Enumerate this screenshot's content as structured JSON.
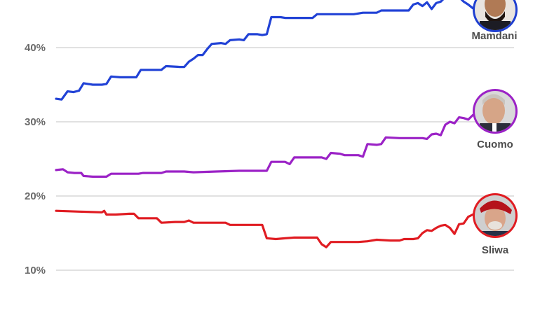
{
  "chart_data": {
    "type": "line",
    "title": "",
    "xlabel": "",
    "ylabel": "",
    "ylim": [
      8,
      49
    ],
    "y_ticks": [
      10,
      20,
      30,
      40
    ],
    "y_tick_labels": [
      "10%",
      "20%",
      "30%",
      "40%"
    ],
    "grid": true,
    "x_range": [
      0,
      100
    ],
    "series": [
      {
        "name": "Mamdani",
        "color": "#2142d6",
        "avatar_ring": "#1f3fd0",
        "icon": "mamdani-portrait",
        "points": [
          [
            0,
            33.1
          ],
          [
            1.2,
            33
          ],
          [
            2.5,
            34.1
          ],
          [
            3.8,
            34
          ],
          [
            5,
            34.2
          ],
          [
            6,
            35.2
          ],
          [
            8,
            35
          ],
          [
            10,
            35
          ],
          [
            11,
            35.1
          ],
          [
            12,
            36.1
          ],
          [
            14,
            36
          ],
          [
            16,
            36
          ],
          [
            17.5,
            36
          ],
          [
            18.5,
            37
          ],
          [
            21,
            37
          ],
          [
            23,
            37
          ],
          [
            24,
            37.5
          ],
          [
            27,
            37.4
          ],
          [
            28,
            37.4
          ],
          [
            29,
            38.1
          ],
          [
            30,
            38.5
          ],
          [
            31,
            39
          ],
          [
            32,
            39
          ],
          [
            33,
            39.8
          ],
          [
            34,
            40.5
          ],
          [
            36,
            40.6
          ],
          [
            37,
            40.5
          ],
          [
            38,
            41
          ],
          [
            40,
            41.1
          ],
          [
            41,
            41
          ],
          [
            42,
            41.8
          ],
          [
            44,
            41.8
          ],
          [
            45,
            41.7
          ],
          [
            46,
            41.8
          ],
          [
            47,
            44.1
          ],
          [
            49,
            44.1
          ],
          [
            50,
            44
          ],
          [
            51,
            44
          ],
          [
            54,
            44
          ],
          [
            56,
            44
          ],
          [
            57,
            44.5
          ],
          [
            60,
            44.5
          ],
          [
            65,
            44.5
          ],
          [
            67,
            44.7
          ],
          [
            70,
            44.7
          ],
          [
            71,
            45
          ],
          [
            75,
            45
          ],
          [
            77,
            45
          ],
          [
            78,
            45.8
          ],
          [
            79,
            46
          ],
          [
            80,
            45.6
          ],
          [
            81,
            46.1
          ],
          [
            82,
            45.2
          ],
          [
            83,
            46
          ],
          [
            84,
            46.2
          ],
          [
            85,
            46.8
          ],
          [
            86,
            47
          ],
          [
            87,
            46.6
          ],
          [
            88,
            46.8
          ],
          [
            89,
            46.2
          ],
          [
            90,
            45.8
          ],
          [
            91,
            45.3
          ],
          [
            92,
            45.4
          ]
        ]
      },
      {
        "name": "Cuomo",
        "color": "#9b22c6",
        "avatar_ring": "#9b22c6",
        "icon": "cuomo-portrait",
        "points": [
          [
            0,
            23.5
          ],
          [
            1.5,
            23.6
          ],
          [
            2.5,
            23.2
          ],
          [
            4,
            23.1
          ],
          [
            5.5,
            23.1
          ],
          [
            6,
            22.7
          ],
          [
            8,
            22.6
          ],
          [
            10,
            22.6
          ],
          [
            11,
            22.6
          ],
          [
            12,
            23
          ],
          [
            14,
            23
          ],
          [
            18,
            23
          ],
          [
            19,
            23.1
          ],
          [
            22,
            23.1
          ],
          [
            23,
            23.1
          ],
          [
            24,
            23.3
          ],
          [
            28,
            23.3
          ],
          [
            30,
            23.2
          ],
          [
            35,
            23.3
          ],
          [
            40,
            23.4
          ],
          [
            45,
            23.4
          ],
          [
            46,
            23.4
          ],
          [
            47,
            24.6
          ],
          [
            50,
            24.6
          ],
          [
            51,
            24.3
          ],
          [
            52,
            25.2
          ],
          [
            55,
            25.2
          ],
          [
            58,
            25.2
          ],
          [
            59,
            25
          ],
          [
            60,
            25.8
          ],
          [
            62,
            25.7
          ],
          [
            63,
            25.5
          ],
          [
            66,
            25.5
          ],
          [
            67,
            25.3
          ],
          [
            68,
            27
          ],
          [
            70,
            26.9
          ],
          [
            71,
            27
          ],
          [
            72,
            27.9
          ],
          [
            75,
            27.8
          ],
          [
            77,
            27.8
          ],
          [
            80,
            27.8
          ],
          [
            81,
            27.7
          ],
          [
            82,
            28.3
          ],
          [
            83,
            28.4
          ],
          [
            84,
            28.2
          ],
          [
            85,
            29.6
          ],
          [
            86,
            30
          ],
          [
            87,
            29.8
          ],
          [
            88,
            30.6
          ],
          [
            89,
            30.5
          ],
          [
            90,
            30.3
          ],
          [
            91,
            30.9
          ],
          [
            92,
            31
          ]
        ]
      },
      {
        "name": "Sliwa",
        "color": "#e01c22",
        "avatar_ring": "#e01c22",
        "icon": "sliwa-portrait",
        "points": [
          [
            0,
            18
          ],
          [
            5,
            17.9
          ],
          [
            10,
            17.8
          ],
          [
            10.5,
            18
          ],
          [
            11,
            17.5
          ],
          [
            13,
            17.5
          ],
          [
            16,
            17.6
          ],
          [
            17,
            17.6
          ],
          [
            18,
            17
          ],
          [
            20,
            17
          ],
          [
            22,
            17
          ],
          [
            23,
            16.4
          ],
          [
            26,
            16.5
          ],
          [
            28,
            16.5
          ],
          [
            29,
            16.7
          ],
          [
            30,
            16.4
          ],
          [
            33,
            16.4
          ],
          [
            36,
            16.4
          ],
          [
            37,
            16.4
          ],
          [
            38,
            16.1
          ],
          [
            41,
            16.1
          ],
          [
            44,
            16.1
          ],
          [
            45,
            16.1
          ],
          [
            46,
            14.3
          ],
          [
            48,
            14.2
          ],
          [
            50,
            14.3
          ],
          [
            52,
            14.4
          ],
          [
            55,
            14.4
          ],
          [
            57,
            14.4
          ],
          [
            58,
            13.5
          ],
          [
            59,
            13.1
          ],
          [
            60,
            13.8
          ],
          [
            63,
            13.8
          ],
          [
            66,
            13.8
          ],
          [
            68,
            13.9
          ],
          [
            70,
            14.1
          ],
          [
            73,
            14
          ],
          [
            75,
            14
          ],
          [
            76,
            14.2
          ],
          [
            78,
            14.2
          ],
          [
            79,
            14.3
          ],
          [
            80,
            15
          ],
          [
            81,
            15.4
          ],
          [
            82,
            15.3
          ],
          [
            83,
            15.7
          ],
          [
            84,
            16
          ],
          [
            85,
            16.1
          ],
          [
            86,
            15.7
          ],
          [
            87,
            14.9
          ],
          [
            88,
            16.2
          ],
          [
            89,
            16.3
          ],
          [
            90,
            17.2
          ],
          [
            91,
            17.5
          ],
          [
            92,
            17.1
          ]
        ]
      }
    ]
  }
}
